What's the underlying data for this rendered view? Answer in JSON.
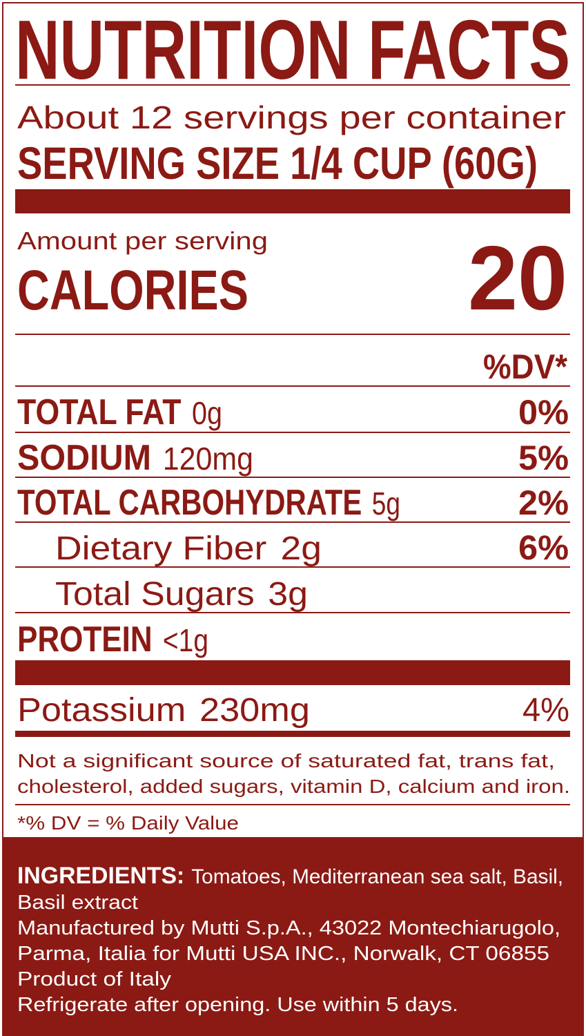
{
  "colors": {
    "brand": "#8b1a14",
    "background": "#ffffff",
    "panel_text": "#ffffff"
  },
  "title": "NUTRITION FACTS",
  "servings_per_container": "About 12 servings per container",
  "serving_size": "SERVING SIZE  1/4 CUP  (60G)",
  "amount_per_serving": "Amount per serving",
  "calories_label": "CALORIES",
  "calories_value": "20",
  "dv_header": "%DV*",
  "nutrients": [
    {
      "label": "TOTAL FAT",
      "amount": "0g",
      "dv": "0%"
    },
    {
      "label": "SODIUM",
      "amount": "120mg",
      "dv": "5%"
    },
    {
      "label": "TOTAL CARBOHYDRATE",
      "amount": "5g",
      "dv": "2%"
    },
    {
      "label": "Dietary Fiber",
      "amount": "2g",
      "dv": "6%"
    },
    {
      "label": "Total Sugars",
      "amount": "3g",
      "dv": ""
    },
    {
      "label": "PROTEIN",
      "amount": "<1g",
      "dv": ""
    }
  ],
  "potassium": {
    "label": "Potassium",
    "amount": "230mg",
    "dv": "4%"
  },
  "footnote": [
    "Not a significant source of saturated fat, trans fat,",
    "cholesterol, added sugars, vitamin D, calcium and iron."
  ],
  "dv_note": "*% DV = % Daily Value",
  "ingredients": {
    "label": "INGREDIENTS:",
    "text": "Tomatoes, Mediterranean sea salt, Basil,",
    "lines": [
      "Basil extract",
      "Manufactured by Mutti S.p.A., 43022 Montechiarugolo,",
      "Parma, Italia for Mutti USA INC., Norwalk, CT 06855",
      "Product of Italy",
      "Refrigerate after opening. Use within 5 days."
    ]
  }
}
